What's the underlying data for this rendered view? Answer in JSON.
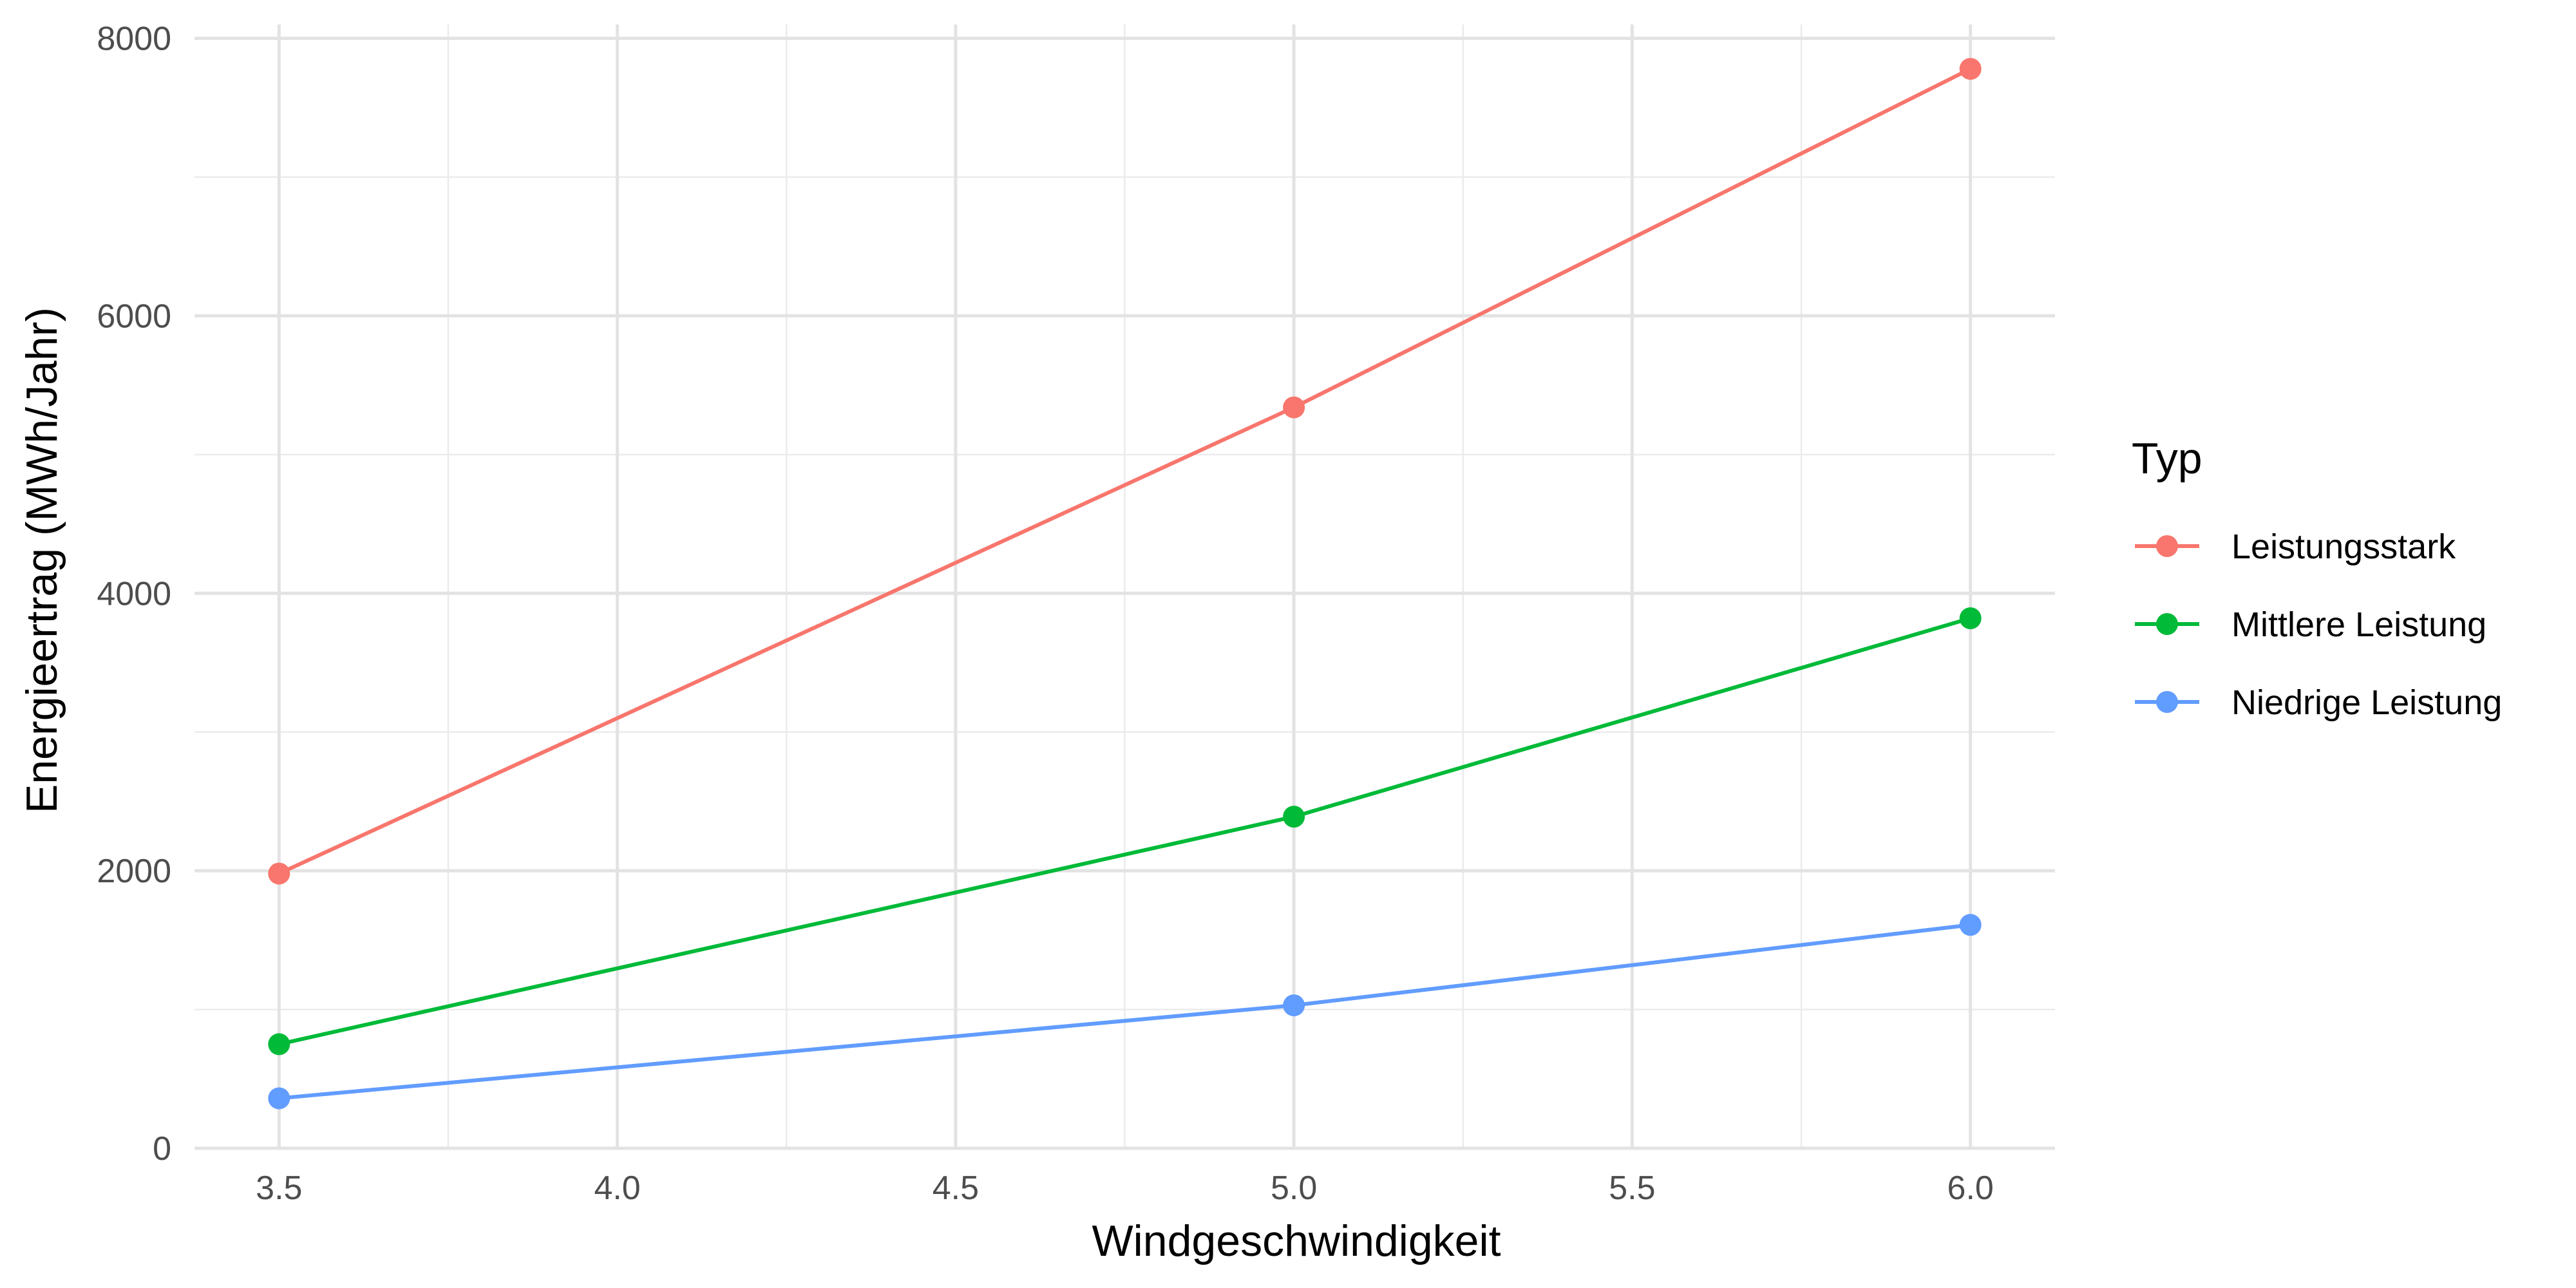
{
  "chart_data": {
    "type": "line",
    "xlabel": "Windgeschwindigkeit",
    "ylabel": "Energieertrag (MWh/Jahr)",
    "x": [
      3.5,
      5.0,
      6.0
    ],
    "xlim": [
      3.375,
      6.125
    ],
    "ylim": [
      0,
      8100
    ],
    "x_ticks": [
      "3.5",
      "4.0",
      "4.5",
      "5.0",
      "5.5",
      "6.0"
    ],
    "y_ticks": [
      "0",
      "2000",
      "4000",
      "6000",
      "8000"
    ],
    "grid": true,
    "legend": {
      "title": "Typ",
      "position": "right"
    },
    "series": [
      {
        "name": "Leistungsstark",
        "color": "#F8766D",
        "values": [
          1980,
          5340,
          7780
        ]
      },
      {
        "name": "Mittlere Leistung",
        "color": "#00BA38",
        "values": [
          750,
          2390,
          3820
        ]
      },
      {
        "name": "Niedrige Leistung",
        "color": "#619CFF",
        "values": [
          360,
          1030,
          1610
        ]
      }
    ]
  }
}
